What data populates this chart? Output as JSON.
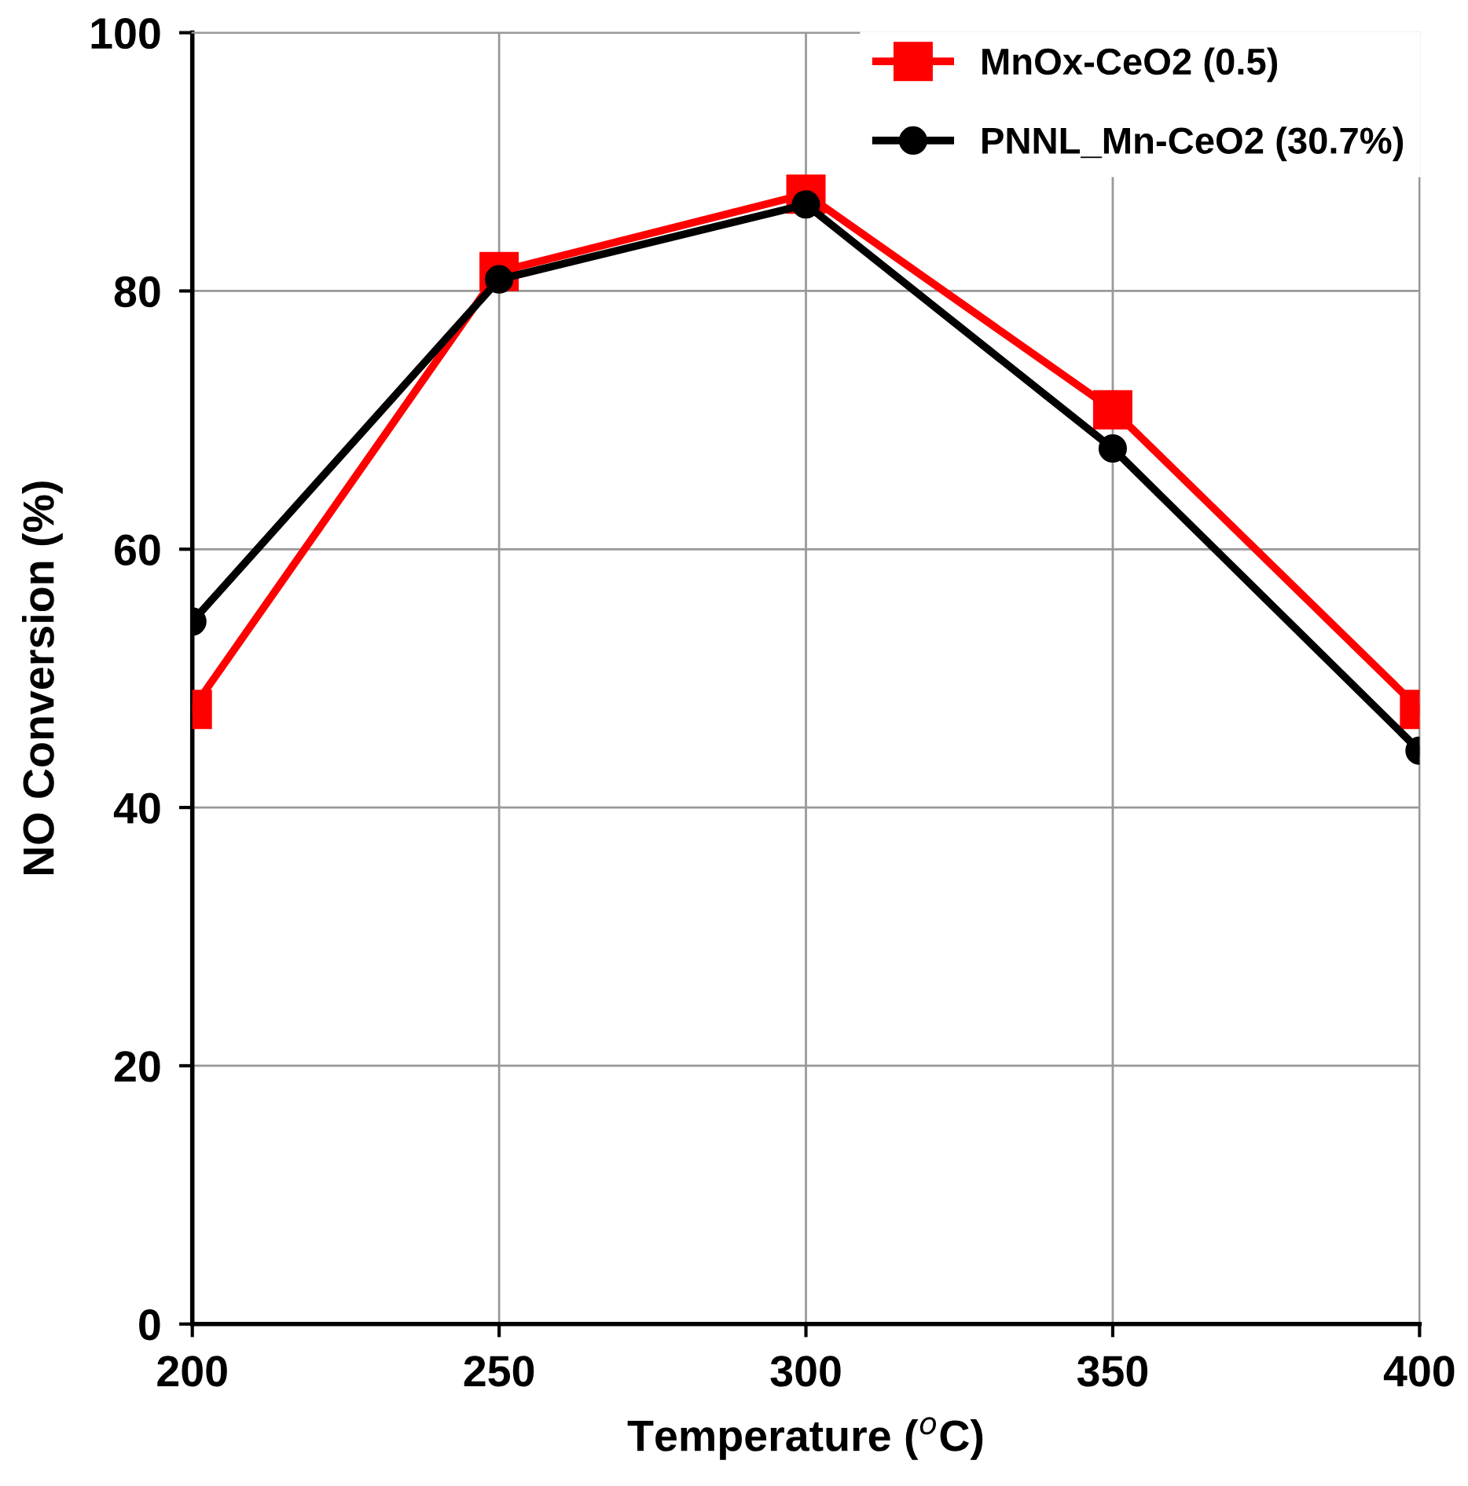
{
  "chart_data": {
    "type": "line",
    "xlabel": "Temperature ($^{o}$C)",
    "ylabel": "NO Conversion (%)",
    "x": [
      200,
      250,
      300,
      350,
      400
    ],
    "series": [
      {
        "name": "MnOx-CeO2 (0.5)",
        "color": "#ff0000",
        "marker": "square",
        "values": [
          47.6,
          81.5,
          87.5,
          70.8,
          47.6
        ]
      },
      {
        "name": "PNNL_Mn-CeO2 (30.7%)",
        "color": "#000000",
        "marker": "circle",
        "values": [
          54.4,
          80.9,
          86.7,
          67.8,
          44.4
        ]
      }
    ],
    "xlim": [
      200,
      400
    ],
    "xticks": [
      200,
      250,
      300,
      350,
      400
    ],
    "ylim": [
      0,
      100
    ],
    "yticks": [
      0,
      20,
      40,
      60,
      80,
      100
    ],
    "grid": true,
    "legend": "top right",
    "line_style": "solid"
  }
}
